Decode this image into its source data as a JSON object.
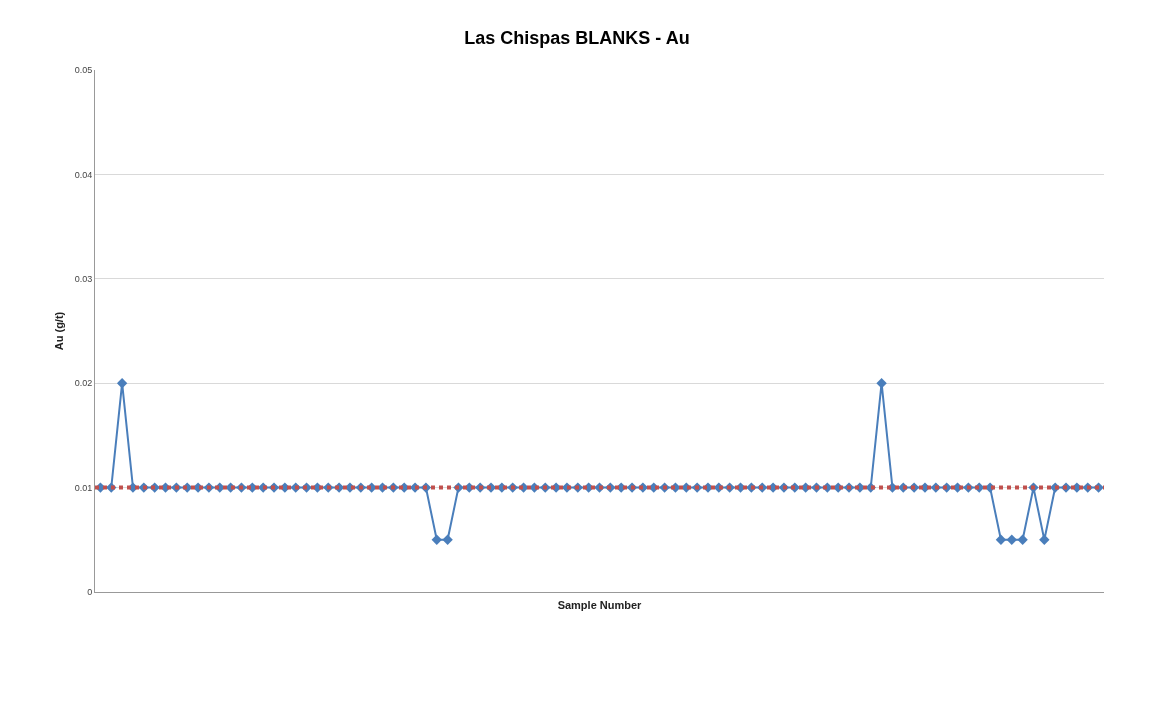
{
  "chart_data": {
    "type": "line",
    "title": "Las Chispas BLANKS - Au",
    "xlabel": "Sample Number",
    "ylabel": "Au (g/t)",
    "categories": [
      null,
      null,
      null,
      null,
      null,
      null,
      null,
      null,
      null,
      null,
      null,
      null,
      null,
      null,
      null,
      null,
      null,
      null,
      null,
      null,
      null,
      null,
      null,
      null,
      null,
      null,
      null,
      null,
      null,
      null,
      null,
      null,
      null,
      null,
      null,
      null,
      null,
      null,
      null,
      null,
      null,
      null,
      null,
      null,
      null,
      null,
      null,
      null,
      null,
      null,
      null,
      null,
      null,
      null,
      null,
      null,
      null,
      null,
      null,
      null,
      null,
      null,
      null,
      null,
      null,
      null,
      null,
      null,
      null,
      null,
      null,
      null,
      null,
      null,
      null,
      null,
      null,
      null,
      null,
      null,
      null,
      null,
      null,
      null,
      null,
      null,
      null,
      null,
      null,
      null,
      null,
      null,
      null
    ],
    "series": [
      {
        "color": "#4a7ebb",
        "values": [
          0.01,
          0.01,
          0.02,
          0.01,
          0.01,
          0.01,
          0.01,
          0.01,
          0.01,
          0.01,
          0.01,
          0.01,
          0.01,
          0.01,
          0.01,
          0.01,
          0.01,
          0.01,
          0.01,
          0.01,
          0.01,
          0.01,
          0.01,
          0.01,
          0.01,
          0.01,
          0.01,
          0.01,
          0.01,
          0.01,
          0.01,
          0.005,
          0.005,
          0.01,
          0.01,
          0.01,
          0.01,
          0.01,
          0.01,
          0.01,
          0.01,
          0.01,
          0.01,
          0.01,
          0.01,
          0.01,
          0.01,
          0.01,
          0.01,
          0.01,
          0.01,
          0.01,
          0.01,
          0.01,
          0.01,
          0.01,
          0.01,
          0.01,
          0.01,
          0.01,
          0.01,
          0.01,
          0.01,
          0.01,
          0.01,
          0.01,
          0.01,
          0.01,
          0.01,
          0.01,
          0.01,
          0.01,
          0.02,
          0.01,
          0.01,
          0.01,
          0.01,
          0.01,
          0.01,
          0.01,
          0.01,
          0.01,
          0.01,
          0.005,
          0.005,
          0.005,
          0.01,
          0.005,
          0.01,
          0.01,
          0.01,
          0.01,
          0.01
        ]
      }
    ],
    "ylim": [
      0,
      0.05
    ],
    "yticks": [
      0,
      0.01,
      0.02,
      0.03,
      0.04,
      0.05
    ],
    "grid": "y",
    "marker": "diamond",
    "line_style": "solid",
    "ref_lines": [
      {
        "axis": "y",
        "value": 0.01,
        "color": "#c0504d",
        "line_style": "dotted"
      }
    ]
  }
}
